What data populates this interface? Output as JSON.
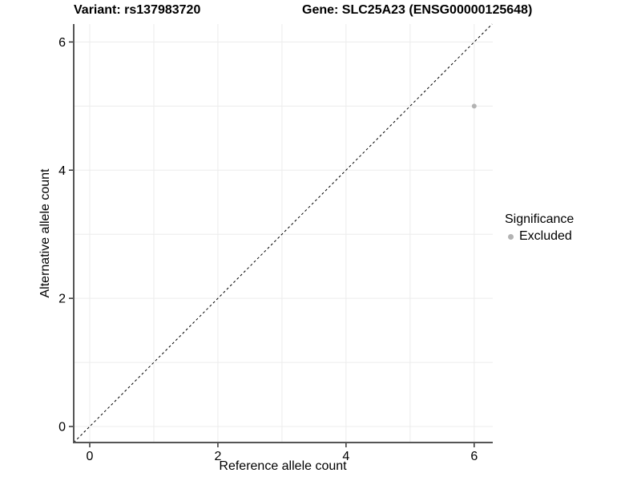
{
  "chart_data": {
    "type": "scatter",
    "title_variant": "Variant: rs137983720",
    "title_gene": "Gene: SLC25A23 (ENSG00000125648)",
    "xlabel": "Reference allele count",
    "ylabel": "Alternative allele count",
    "xlim": [
      -0.25,
      6.29
    ],
    "ylim": [
      -0.25,
      6.28
    ],
    "x_ticks": [
      0,
      2,
      4,
      6
    ],
    "y_ticks": [
      0,
      2,
      4,
      6
    ],
    "gridline_values": [
      0,
      1,
      2,
      3,
      4,
      5,
      6
    ],
    "grid_on": true,
    "identity_line": {
      "style": "dashed",
      "equation": "y = x",
      "color": "#000000"
    },
    "series": [
      {
        "name": "Excluded",
        "color": "#b3b3b3",
        "points": [
          {
            "x": 6,
            "y": 5
          }
        ]
      }
    ],
    "legend": {
      "title": "Significance",
      "position": "right",
      "items": [
        {
          "label": "Excluded",
          "color": "#b3b3b3",
          "marker": "dot"
        }
      ]
    },
    "colors": {
      "grid": "#ececec",
      "axis_line": "#555555",
      "tick": "#333333",
      "text": "#000000"
    }
  }
}
